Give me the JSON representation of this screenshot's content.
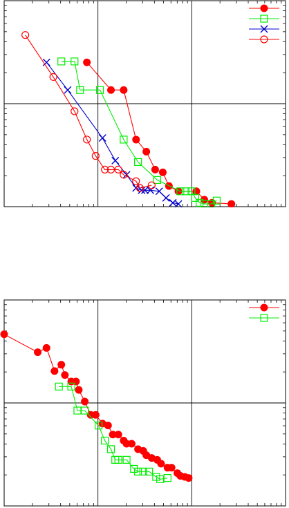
{
  "chart_data": [
    {
      "type": "line",
      "title": "",
      "xlabel": "",
      "ylabel": "",
      "x_scale": "log",
      "y_scale": "log",
      "xlim": [
        1,
        10000
      ],
      "ylim": [
        1e-06,
        1
      ],
      "grid": "major-only",
      "legend_position": "top-right",
      "legend_labels": "not-visible",
      "series": [
        {
          "color": "#ff0000",
          "marker": "filled-circle",
          "points": [
            [
              15,
              0.016
            ],
            [
              33,
              0.0025
            ],
            [
              50,
              0.0025
            ],
            [
              75,
              9e-05
            ],
            [
              105,
              4e-05
            ],
            [
              140,
              1.2e-05
            ],
            [
              180,
              1e-05
            ],
            [
              220,
              4e-06
            ],
            [
              300,
              2.8e-06
            ],
            [
              540,
              2.8e-06
            ],
            [
              700,
              1.6e-06
            ],
            [
              900,
              1.3e-06
            ],
            [
              1700,
              1.2e-06
            ]
          ]
        },
        {
          "color": "#00ee00",
          "marker": "open-square",
          "points": [
            [
              6.5,
              0.017
            ],
            [
              10,
              0.017
            ],
            [
              12,
              0.0025
            ],
            [
              23,
              0.0025
            ],
            [
              50,
              9e-05
            ],
            [
              80,
              2e-05
            ],
            [
              150,
              6e-06
            ],
            [
              320,
              2.8e-06
            ],
            [
              380,
              2.8e-06
            ],
            [
              460,
              2.8e-06
            ],
            [
              520,
              1.8e-06
            ],
            [
              600,
              1.3e-06
            ],
            [
              700,
              1.2e-06
            ],
            [
              880,
              1.2e-06
            ],
            [
              1050,
              1.5e-06
            ]
          ]
        },
        {
          "color": "#0000cc",
          "marker": "x",
          "points": [
            [
              4,
              0.016
            ],
            [
              8,
              0.0025
            ],
            [
              25,
              0.0001
            ],
            [
              38,
              2.2e-05
            ],
            [
              55,
              8.5e-06
            ],
            [
              75,
              3.5e-06
            ],
            [
              90,
              3e-06
            ],
            [
              100,
              3e-06
            ],
            [
              120,
              3e-06
            ],
            [
              160,
              2.8e-06
            ],
            [
              200,
              1.8e-06
            ],
            [
              250,
              1.3e-06
            ],
            [
              300,
              1.2e-06
            ]
          ]
        },
        {
          "color": "#ff0000",
          "marker": "open-circle",
          "points": [
            [
              2,
              0.1
            ],
            [
              5,
              0.006
            ],
            [
              10,
              0.0006
            ],
            [
              15,
              9e-05
            ],
            [
              20,
              3e-05
            ],
            [
              27,
              1.2e-05
            ],
            [
              33,
              1.2e-05
            ],
            [
              42,
              1.2e-05
            ],
            [
              50,
              8.5e-06
            ],
            [
              75,
              5.5e-06
            ],
            [
              85,
              3.5e-06
            ],
            [
              125,
              4.2e-06
            ]
          ]
        }
      ]
    },
    {
      "type": "line",
      "title": "",
      "xlabel": "",
      "ylabel": "",
      "x_scale": "log",
      "y_scale": "log",
      "xlim": [
        1,
        10000
      ],
      "ylim": [
        1e-06,
        1
      ],
      "grid": "major-only",
      "legend_position": "top-right",
      "legend_labels": "not-visible",
      "series": [
        {
          "color": "#ff0000",
          "marker": "filled-circle",
          "points": [
            [
              1,
              0.1
            ],
            [
              3,
              0.03
            ],
            [
              4,
              0.04
            ],
            [
              5.2,
              0.0085
            ],
            [
              6.5,
              0.013
            ],
            [
              7.3,
              0.0065
            ],
            [
              9,
              0.0042
            ],
            [
              10.5,
              0.0042
            ],
            [
              11.5,
              0.0024
            ],
            [
              14,
              0.0011
            ],
            [
              17,
              0.00045
            ],
            [
              20,
              0.00045
            ],
            [
              25,
              0.00025
            ],
            [
              30,
              0.00022
            ],
            [
              35,
              0.00012
            ],
            [
              42,
              0.00012
            ],
            [
              50,
              8e-05
            ],
            [
              55,
              6.5e-05
            ],
            [
              65,
              6.5e-05
            ],
            [
              80,
              4.5e-05
            ],
            [
              95,
              4e-05
            ],
            [
              105,
              3e-05
            ],
            [
              125,
              2.5e-05
            ],
            [
              150,
              2.2e-05
            ],
            [
              170,
              1.7e-05
            ],
            [
              210,
              1.3e-05
            ],
            [
              240,
              1.3e-05
            ],
            [
              290,
              9e-06
            ],
            [
              320,
              7.5e-06
            ],
            [
              370,
              7e-06
            ],
            [
              420,
              6.5e-06
            ]
          ]
        },
        {
          "color": "#00ee00",
          "marker": "open-square",
          "points": [
            [
              6,
              0.003
            ],
            [
              9,
              0.003
            ],
            [
              11,
              0.0006
            ],
            [
              14,
              0.0006
            ],
            [
              22,
              0.00022
            ],
            [
              27,
              8e-05
            ],
            [
              33,
              4.5e-05
            ],
            [
              38,
              2.2e-05
            ],
            [
              42,
              2.2e-05
            ],
            [
              55,
              2.2e-05
            ],
            [
              70,
              1.2e-05
            ],
            [
              80,
              1e-05
            ],
            [
              95,
              1e-05
            ],
            [
              115,
              1e-05
            ],
            [
              145,
              7e-06
            ],
            [
              165,
              6e-06
            ],
            [
              210,
              6.5e-06
            ]
          ]
        }
      ]
    }
  ]
}
